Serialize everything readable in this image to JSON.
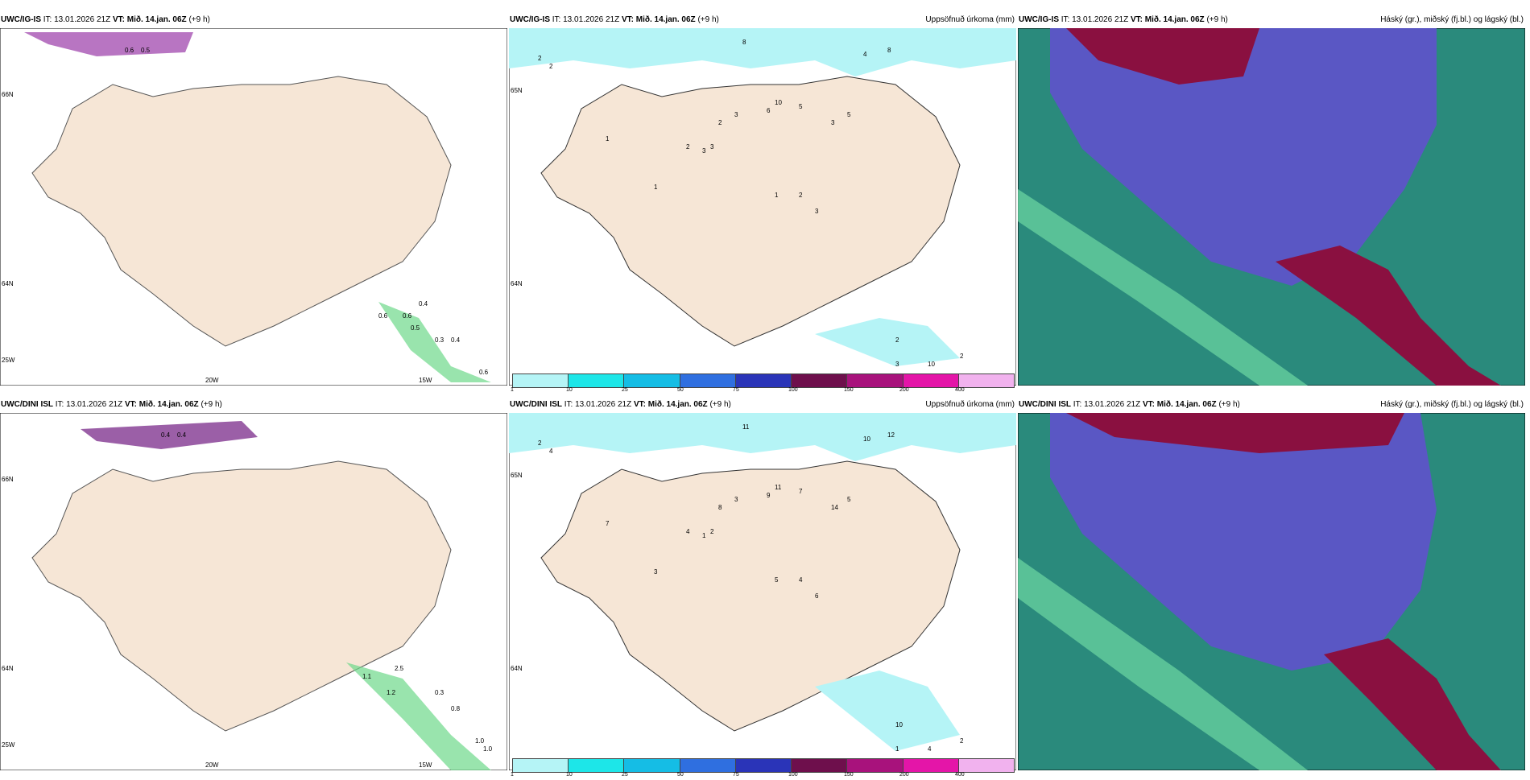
{
  "rows": [
    {
      "panels": [
        {
          "model": "UWC/IG-IS",
          "it_label": "IT:",
          "it": "13.01.2026 21Z",
          "vt_label": "VT:",
          "vt": "Mið. 14.jan. 06Z",
          "lead": "(+9 h)",
          "right_title": "",
          "lat_labels": [
            "66N",
            "64N"
          ],
          "lon_labels": [
            "20W",
            "15W",
            "25W"
          ],
          "values": [
            "0.6",
            "0.5",
            "0.4",
            "0.3",
            "0.6",
            "0.5",
            "0.6",
            "0.6",
            "0.4"
          ]
        },
        {
          "model": "UWC/IG-IS",
          "it_label": "IT:",
          "it": "13.01.2026 21Z",
          "vt_label": "VT:",
          "vt": "Mið. 14.jan. 06Z",
          "lead": "(+9 h)",
          "right_title": "Uppsöfnuð úrkoma (mm)",
          "lat_labels": [
            "65N",
            "64N"
          ],
          "values": [
            "8",
            "2",
            "2",
            "4",
            "8",
            "10",
            "6",
            "3",
            "5",
            "3",
            "2",
            "1",
            "3",
            "2",
            "3",
            "1",
            "1",
            "2",
            "3",
            "5",
            "2",
            "10",
            "2",
            "3"
          ]
        },
        {
          "model": "UWC/IG-IS",
          "it_label": "IT:",
          "it": "13.01.2026 21Z",
          "vt_label": "VT:",
          "vt": "Mið. 14.jan. 06Z",
          "lead": "(+9 h)",
          "right_title": "Háský (gr.), miðský (fj.bl.) og lágský (bl.)"
        }
      ]
    },
    {
      "panels": [
        {
          "model": "UWC/DINI ISL",
          "it_label": "IT:",
          "it": "13.01.2026 21Z",
          "vt_label": "VT:",
          "vt": "Mið. 14.jan. 06Z",
          "lead": "(+9 h)",
          "right_title": "",
          "lat_labels": [
            "66N",
            "64N"
          ],
          "lon_labels": [
            "20W",
            "15W",
            "25W"
          ],
          "values": [
            "0.4",
            "0.4",
            "2.5",
            "1.1",
            "1.2",
            "0.3",
            "0.8",
            "1.0",
            "1.0"
          ]
        },
        {
          "model": "UWC/DINI ISL",
          "it_label": "IT:",
          "it": "13.01.2026 21Z",
          "vt_label": "VT:",
          "vt": "Mið. 14.jan. 06Z",
          "lead": "(+9 h)",
          "right_title": "Uppsöfnuð úrkoma (mm)",
          "lat_labels": [
            "65N",
            "64N"
          ],
          "values": [
            "11",
            "2",
            "4",
            "10",
            "12",
            "11",
            "9",
            "3",
            "5",
            "14",
            "8",
            "7",
            "2",
            "4",
            "1",
            "3",
            "5",
            "4",
            "6",
            "7",
            "10",
            "4",
            "2",
            "1"
          ]
        },
        {
          "model": "UWC/DINI ISL",
          "it_label": "IT:",
          "it": "13.01.2026 21Z",
          "vt_label": "VT:",
          "vt": "Mið. 14.jan. 06Z",
          "lead": "(+9 h)",
          "right_title": "Háský (gr.), miðský (fj.bl.) og lágský (bl.)"
        }
      ]
    }
  ],
  "colorbar": {
    "ticks": [
      "1",
      "10",
      "25",
      "50",
      "75",
      "100",
      "150",
      "200",
      "400"
    ],
    "colors": [
      "#b5f4f6",
      "#1de6e8",
      "#15bde5",
      "#2f6fe0",
      "#2a34b8",
      "#6e0f4c",
      "#a8127c",
      "#e415a8",
      "#f1b2ee"
    ]
  },
  "colors": {
    "land": "#f6e6d6",
    "sea": "#ffffff",
    "precip_light": "#b5f4f6",
    "precip_purple": "#9a3aa8",
    "cloud_high": "#2a8a7c",
    "cloud_mid": "#5a57c4",
    "cloud_low": "#8a1040"
  }
}
